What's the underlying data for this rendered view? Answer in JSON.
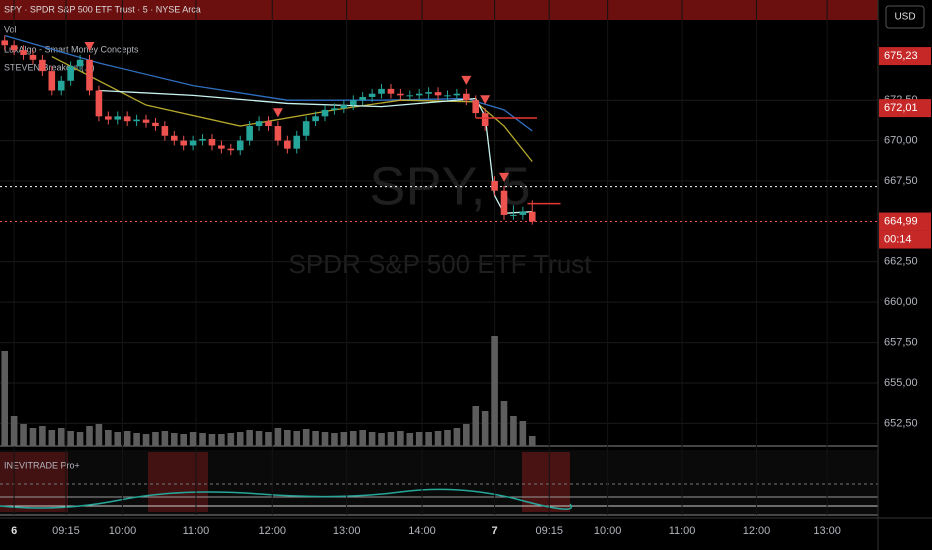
{
  "header": {
    "symbol_line": "SPY · SPDR S&P 500 ETF Trust · 5 · NYSE Arca",
    "indicators": [
      "Vol",
      "LuxAlgo - Smart Money Concepts",
      "STEVEN Breakout (...)"
    ],
    "currency_button": "USD",
    "lower_pane_title": "INEVITRADE Pro+",
    "watermark_symbol": "SPY, 5",
    "watermark_name": "SPDR S&P 500 ETF Trust",
    "countdown": "00:14"
  },
  "chart_data": {
    "type": "candlestick",
    "candles": [
      [
        676.2,
        676.5,
        675.6,
        675.9
      ],
      [
        675.9,
        676.2,
        675.3,
        675.6
      ],
      [
        675.6,
        675.9,
        675.0,
        675.3
      ],
      [
        675.3,
        675.6,
        674.7,
        675.0
      ],
      [
        675.0,
        675.3,
        674.0,
        674.3
      ],
      [
        674.3,
        674.6,
        672.8,
        673.1
      ],
      [
        673.1,
        674.0,
        672.8,
        673.7
      ],
      [
        673.7,
        674.9,
        673.4,
        674.6
      ],
      [
        674.6,
        675.3,
        674.3,
        675.0
      ],
      [
        675.0,
        675.3,
        672.8,
        673.1
      ],
      [
        673.1,
        673.4,
        671.2,
        671.5
      ],
      [
        671.5,
        671.8,
        671.0,
        671.3
      ],
      [
        671.3,
        671.8,
        671.0,
        671.5
      ],
      [
        671.5,
        671.8,
        670.9,
        671.2
      ],
      [
        671.2,
        671.6,
        670.9,
        671.3
      ],
      [
        671.3,
        671.6,
        670.8,
        671.1
      ],
      [
        671.1,
        671.4,
        670.6,
        670.9
      ],
      [
        670.9,
        671.2,
        670.0,
        670.3
      ],
      [
        670.3,
        670.6,
        669.7,
        670.0
      ],
      [
        670.0,
        670.3,
        669.4,
        669.7
      ],
      [
        669.7,
        670.3,
        669.4,
        670.0
      ],
      [
        670.0,
        670.4,
        669.7,
        670.1
      ],
      [
        670.1,
        670.4,
        669.4,
        669.7
      ],
      [
        669.7,
        670.0,
        669.2,
        669.5
      ],
      [
        669.5,
        669.8,
        669.1,
        669.4
      ],
      [
        669.4,
        670.3,
        669.1,
        670.0
      ],
      [
        670.0,
        671.2,
        669.7,
        670.9
      ],
      [
        670.9,
        671.5,
        670.6,
        671.2
      ],
      [
        671.2,
        671.5,
        670.6,
        670.9
      ],
      [
        670.9,
        671.2,
        669.7,
        670.0
      ],
      [
        670.0,
        670.3,
        669.2,
        669.5
      ],
      [
        669.5,
        670.6,
        669.2,
        670.3
      ],
      [
        670.3,
        671.5,
        670.0,
        671.2
      ],
      [
        671.2,
        671.8,
        670.9,
        671.5
      ],
      [
        671.5,
        672.2,
        671.2,
        671.9
      ],
      [
        671.9,
        672.3,
        671.6,
        672.0
      ],
      [
        672.0,
        672.5,
        671.7,
        672.2
      ],
      [
        672.2,
        672.8,
        671.9,
        672.5
      ],
      [
        672.5,
        673.0,
        672.2,
        672.7
      ],
      [
        672.7,
        673.2,
        672.4,
        672.9
      ],
      [
        672.9,
        673.5,
        672.6,
        673.2
      ],
      [
        673.2,
        673.5,
        672.6,
        672.9
      ],
      [
        672.9,
        673.2,
        672.5,
        672.8
      ],
      [
        672.8,
        673.1,
        672.5,
        672.8
      ],
      [
        672.8,
        673.2,
        672.5,
        672.9
      ],
      [
        672.9,
        673.3,
        672.6,
        673.0
      ],
      [
        673.0,
        673.3,
        672.5,
        672.8
      ],
      [
        672.8,
        673.1,
        672.5,
        672.8
      ],
      [
        672.8,
        673.2,
        672.5,
        672.9
      ],
      [
        672.9,
        673.2,
        672.2,
        672.5
      ],
      [
        672.5,
        672.8,
        671.4,
        671.7
      ],
      [
        671.7,
        672.0,
        670.6,
        670.9
      ],
      [
        667.5,
        667.8,
        666.6,
        666.9
      ],
      [
        666.9,
        667.2,
        665.1,
        665.4
      ],
      [
        665.4,
        666.0,
        665.1,
        665.4
      ],
      [
        665.4,
        665.9,
        665.1,
        665.6
      ],
      [
        665.6,
        666.3,
        664.8,
        664.99
      ]
    ],
    "up_color": "#26a69a",
    "down_color": "#ef5350",
    "volume": {
      "values": [
        95,
        30,
        22,
        18,
        20,
        16,
        18,
        15,
        14,
        20,
        22,
        16,
        14,
        15,
        13,
        12,
        14,
        15,
        13,
        12,
        14,
        13,
        12,
        12,
        13,
        14,
        16,
        15,
        14,
        18,
        16,
        15,
        17,
        15,
        14,
        13,
        14,
        15,
        16,
        14,
        13,
        14,
        15,
        13,
        14,
        14,
        15,
        16,
        18,
        22,
        40,
        35,
        110,
        45,
        30,
        25,
        10
      ],
      "ylim": [
        0,
        120
      ],
      "color": "#5d5d5d"
    },
    "lines": [
      {
        "color": "#2f6fc0",
        "x": [
          0,
          10,
          20,
          30,
          40,
          49,
          53,
          56
        ],
        "values": [
          676.5,
          674.8,
          673.4,
          672.5,
          672.5,
          672.6,
          671.9,
          670.6
        ]
      },
      {
        "color": "#b5a82c",
        "x": [
          5,
          15,
          25,
          35,
          42,
          50,
          53,
          56
        ],
        "values": [
          675.2,
          672.2,
          670.9,
          671.9,
          672.5,
          672.4,
          670.9,
          668.7
        ]
      },
      {
        "color": "#c8f3ee",
        "x": [
          10,
          20,
          30,
          40,
          50,
          51,
          52,
          53,
          56
        ],
        "values": [
          673.1,
          672.8,
          672.3,
          672.1,
          672.6,
          671.5,
          666.6,
          665.5,
          665.6
        ]
      }
    ],
    "signals": [
      9,
      29,
      49,
      51,
      53
    ],
    "signal_color": "#ef5350",
    "levels": [
      {
        "value": 671.4,
        "from": 50,
        "to": 56.5
      },
      {
        "value": 666.1,
        "from": 55.5,
        "to": 59
      }
    ],
    "level_color": "#e53935",
    "hlines": [
      {
        "value": 667.15,
        "color": "#ffffff"
      },
      {
        "value": 664.99,
        "color": "#ef5350"
      }
    ],
    "ylim": [
      651.1,
      678.7
    ],
    "yticks": [
      {
        "value": 672.5,
        "label": "672,50"
      },
      {
        "value": 670,
        "label": "670,00"
      },
      {
        "value": 667.5,
        "label": "667,50"
      },
      {
        "value": 662.5,
        "label": "662,50"
      },
      {
        "value": 660,
        "label": "660,00"
      },
      {
        "value": 657.5,
        "label": "657,50"
      },
      {
        "value": 655,
        "label": "655,00"
      },
      {
        "value": 652.5,
        "label": "652,50"
      }
    ],
    "price_badges": [
      {
        "value": 675.23,
        "label": "675,23"
      },
      {
        "value": 672.01,
        "label": "672,01"
      },
      {
        "value": 664.99,
        "label": "664,99"
      }
    ],
    "xlim": [
      -0.5,
      92.7
    ],
    "xticks": [
      {
        "value": 1,
        "label": "6"
      },
      {
        "value": 6.5,
        "label": "09:15"
      },
      {
        "value": 12.5,
        "label": "10:00"
      },
      {
        "value": 20.3,
        "label": "11:00"
      },
      {
        "value": 28.4,
        "label": "12:00"
      },
      {
        "value": 36.3,
        "label": "13:00"
      },
      {
        "value": 44.3,
        "label": "14:00"
      },
      {
        "value": 52,
        "label": "7"
      },
      {
        "value": 57.8,
        "label": "09:15"
      },
      {
        "value": 64,
        "label": "10:00"
      },
      {
        "value": 71.9,
        "label": "11:00"
      },
      {
        "value": 79.8,
        "label": "12:00"
      },
      {
        "value": 87.3,
        "label": "13:00"
      }
    ],
    "grid": true
  }
}
